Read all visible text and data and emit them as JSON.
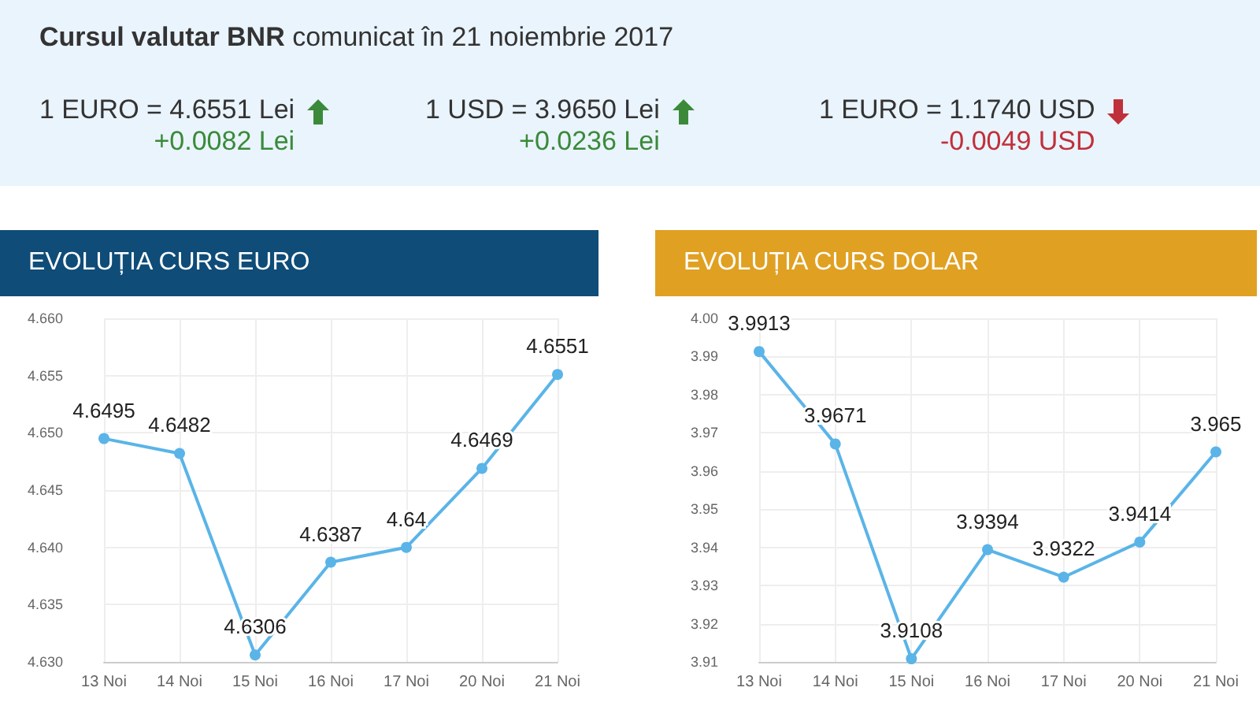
{
  "chart_data": [
    {
      "type": "other",
      "title": "Cursul valutar BNR comunicat în 21 noiembrie 2017",
      "annotations": [
        "1 EURO = 4.6551 Lei",
        "+0.0082 Lei",
        "1 USD = 3.9650 Lei",
        "+0.0236 Lei",
        "1 EURO = 1.1740 USD",
        "-0.0049 USD"
      ],
      "colors": [
        "#3a8a3a",
        "#3a8a3a",
        "#c0303a"
      ]
    },
    {
      "type": "line",
      "title": "EVOLUȚIA CURS EURO",
      "categories": [
        "13 Noi",
        "14 Noi",
        "15 Noi",
        "16 Noi",
        "17 Noi",
        "20 Noi",
        "21 Noi"
      ],
      "series": [
        {
          "color": "#5ab4e8",
          "values": [
            4.6495,
            4.6482,
            4.6306,
            4.6387,
            4.64,
            4.6469,
            4.6551
          ]
        }
      ],
      "ylim": [
        4.63,
        4.66
      ],
      "yticks": [
        {
          "value": 4.63,
          "label": "4.630"
        },
        {
          "value": 4.635,
          "label": "4.635"
        },
        {
          "value": 4.64,
          "label": "4.640"
        },
        {
          "value": 4.645,
          "label": "4.645"
        },
        {
          "value": 4.65,
          "label": "4.650"
        },
        {
          "value": 4.655,
          "label": "4.655"
        },
        {
          "value": 4.66,
          "label": "4.660"
        }
      ],
      "grid": true,
      "marker": "circle",
      "data_labels": true
    },
    {
      "type": "line",
      "title": "EVOLUȚIA CURS DOLAR",
      "categories": [
        "13 Noi",
        "14 Noi",
        "15 Noi",
        "16 Noi",
        "17 Noi",
        "20 Noi",
        "21 Noi"
      ],
      "series": [
        {
          "color": "#5ab4e8",
          "values": [
            3.9913,
            3.9671,
            3.9108,
            3.9394,
            3.9322,
            3.9414,
            3.965
          ]
        }
      ],
      "ylim": [
        3.91,
        4.0
      ],
      "yticks": [
        3.91,
        3.92,
        3.93,
        3.94,
        3.95,
        3.96,
        3.97,
        3.98,
        3.99,
        {
          "value": 4.0,
          "label": "4.00"
        }
      ],
      "grid": true,
      "marker": "circle",
      "data_labels": true
    }
  ]
}
